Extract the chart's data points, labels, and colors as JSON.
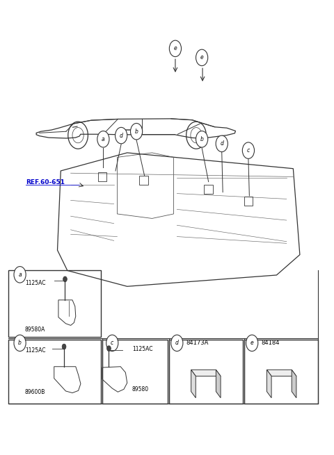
{
  "bg_color": "#ffffff",
  "figure_width": 4.8,
  "figure_height": 6.55,
  "dpi": 100,
  "ref_text": "REF.60-651",
  "ref_color": "#0000cc",
  "line_color": "#333333",
  "text_color": "#000000",
  "box_labels": {
    "a_parts": [
      "1125AC",
      "89580A"
    ],
    "b_parts": [
      "1125AC",
      "89600B"
    ],
    "c_parts": [
      "1125AC",
      "89580"
    ],
    "d_label": "84173A",
    "e_label": "84184"
  }
}
